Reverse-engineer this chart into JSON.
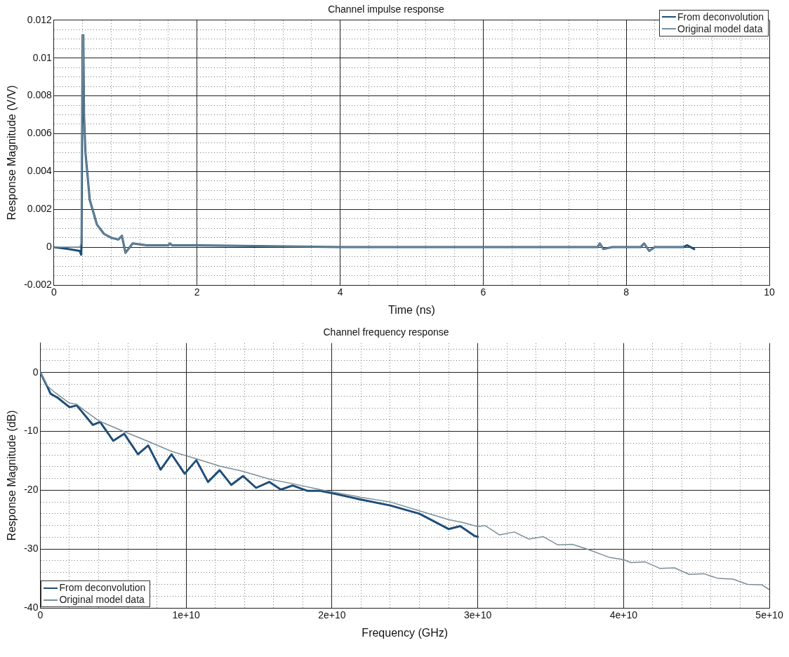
{
  "chart_data": [
    {
      "type": "line",
      "title": "Channel impulse response",
      "xlabel": "Time (ns)",
      "ylabel": "Response Magnitude (V/V)",
      "xlim": [
        0,
        10
      ],
      "ylim": [
        -0.002,
        0.012
      ],
      "xticks": [
        0,
        {
          "value": 0.4,
          "label": null
        },
        {
          "value": 0.8,
          "label": null
        },
        {
          "value": 1.2,
          "label": null
        },
        {
          "value": 1.6,
          "label": null
        },
        2,
        {
          "value": 2.4,
          "label": null
        },
        {
          "value": 2.8,
          "label": null
        },
        {
          "value": 3.2,
          "label": null
        },
        {
          "value": 3.6,
          "label": null
        },
        4,
        {
          "value": 4.4,
          "label": null
        },
        {
          "value": 4.8,
          "label": null
        },
        {
          "value": 5.2,
          "label": null
        },
        {
          "value": 5.6,
          "label": null
        },
        6,
        {
          "value": 6.4,
          "label": null
        },
        {
          "value": 6.8,
          "label": null
        },
        {
          "value": 7.2,
          "label": null
        },
        {
          "value": 7.6,
          "label": null
        },
        8,
        {
          "value": 8.4,
          "label": null
        },
        {
          "value": 8.8,
          "label": null
        },
        {
          "value": 9.2,
          "label": null
        },
        {
          "value": 9.6,
          "label": null
        },
        10
      ],
      "yticks": [
        -0.002,
        {
          "value": -0.0015,
          "label": null
        },
        {
          "value": -0.001,
          "label": null
        },
        {
          "value": -0.0005,
          "label": null
        },
        0,
        {
          "value": 0.0005,
          "label": null
        },
        {
          "value": 0.001,
          "label": null
        },
        {
          "value": 0.0015,
          "label": null
        },
        0.002,
        {
          "value": 0.0025,
          "label": null
        },
        {
          "value": 0.003,
          "label": null
        },
        {
          "value": 0.0035,
          "label": null
        },
        0.004,
        {
          "value": 0.0045,
          "label": null
        },
        {
          "value": 0.005,
          "label": null
        },
        {
          "value": 0.0055,
          "label": null
        },
        0.006,
        {
          "value": 0.0065,
          "label": null
        },
        {
          "value": 0.007,
          "label": null
        },
        {
          "value": 0.0075,
          "label": null
        },
        0.008,
        {
          "value": 0.0085,
          "label": null
        },
        {
          "value": 0.009,
          "label": null
        },
        {
          "value": 0.0095,
          "label": null
        },
        0.01,
        {
          "value": 0.0105,
          "label": null
        },
        {
          "value": 0.011,
          "label": null
        },
        {
          "value": 0.0115,
          "label": null
        },
        0.012
      ],
      "grid": true,
      "legend": "top right",
      "marker": "none",
      "line_style": "solid",
      "series": [
        {
          "name": "From deconvolution",
          "color": "#1f4e79",
          "x": [
            0,
            0.2,
            0.36,
            0.38,
            0.385,
            0.4,
            0.41,
            0.42,
            0.44,
            0.5,
            0.6,
            0.7,
            0.8,
            0.9,
            0.95,
            1.0,
            1.1,
            1.3,
            1.6,
            1.62,
            1.65,
            2,
            4,
            6,
            7.6,
            7.63,
            7.68,
            7.8,
            8.2,
            8.25,
            8.32,
            8.4,
            8.8,
            8.85,
            8.95
          ],
          "values": [
            0,
            -0.0001,
            -0.0002,
            -0.0004,
            0.0002,
            0.0112,
            0.0112,
            0.007,
            0.005,
            0.0025,
            0.0012,
            0.0007,
            0.0005,
            0.0004,
            0.0006,
            -0.0003,
            0.0002,
            0.0001,
            0.0001,
            0.0002,
            0.0001,
            0.0001,
            0,
            0,
            0,
            0.0002,
            -0.0001,
            0,
            0,
            0.0002,
            -0.0002,
            0,
            0,
            0.0001,
            -0.0001
          ]
        },
        {
          "name": "Original model data",
          "color": "#7a9099",
          "x": [
            0,
            0.2,
            0.36,
            0.38,
            0.4,
            0.41,
            0.42,
            0.44,
            0.5,
            0.6,
            0.7,
            0.8,
            0.9,
            0.95,
            1.0,
            1.1,
            1.3,
            1.6,
            1.62,
            1.65,
            2,
            4,
            6,
            7.6,
            7.63,
            7.68,
            7.8,
            8.2,
            8.25,
            8.32,
            8.4,
            8.8
          ],
          "values": [
            0,
            0,
            0,
            0.0002,
            0.0112,
            0.0112,
            0.007,
            0.005,
            0.0025,
            0.0012,
            0.0007,
            0.0005,
            0.0004,
            0.0006,
            -0.0003,
            0.0002,
            0.0001,
            0.0001,
            0.0002,
            0.0001,
            0.0001,
            0,
            0,
            0,
            0.0002,
            -0.0001,
            0,
            0,
            0.0002,
            -0.0002,
            0,
            0
          ]
        }
      ]
    },
    {
      "type": "line",
      "title": "Channel frequency response",
      "xlabel": "Frequency (GHz)",
      "ylabel": "Response Magnitude (dB)",
      "xlim": [
        0,
        50000000000
      ],
      "ylim": [
        -40,
        5
      ],
      "xticks": [
        0,
        {
          "value": 2000000000,
          "label": null
        },
        {
          "value": 4000000000,
          "label": null
        },
        {
          "value": 6000000000,
          "label": null
        },
        {
          "value": 8000000000,
          "label": null
        },
        {
          "value": 10000000000,
          "label": "1e+10"
        },
        {
          "value": 12000000000,
          "label": null
        },
        {
          "value": 14000000000,
          "label": null
        },
        {
          "value": 16000000000,
          "label": null
        },
        {
          "value": 18000000000,
          "label": null
        },
        {
          "value": 20000000000,
          "label": "2e+10"
        },
        {
          "value": 22000000000,
          "label": null
        },
        {
          "value": 24000000000,
          "label": null
        },
        {
          "value": 26000000000,
          "label": null
        },
        {
          "value": 28000000000,
          "label": null
        },
        {
          "value": 30000000000,
          "label": "3e+10"
        },
        {
          "value": 32000000000,
          "label": null
        },
        {
          "value": 34000000000,
          "label": null
        },
        {
          "value": 36000000000,
          "label": null
        },
        {
          "value": 38000000000,
          "label": null
        },
        {
          "value": 40000000000,
          "label": "4e+10"
        },
        {
          "value": 42000000000,
          "label": null
        },
        {
          "value": 44000000000,
          "label": null
        },
        {
          "value": 46000000000,
          "label": null
        },
        {
          "value": 48000000000,
          "label": null
        },
        {
          "value": 50000000000,
          "label": "5e+10"
        }
      ],
      "yticks": [
        -40,
        {
          "value": -38,
          "label": null
        },
        {
          "value": -36,
          "label": null
        },
        {
          "value": -34,
          "label": null
        },
        {
          "value": -32,
          "label": null
        },
        -30,
        {
          "value": -28,
          "label": null
        },
        {
          "value": -26,
          "label": null
        },
        {
          "value": -24,
          "label": null
        },
        {
          "value": -22,
          "label": null
        },
        -20,
        {
          "value": -18,
          "label": null
        },
        {
          "value": -16,
          "label": null
        },
        {
          "value": -14,
          "label": null
        },
        {
          "value": -12,
          "label": null
        },
        -10,
        {
          "value": -8,
          "label": null
        },
        {
          "value": -6,
          "label": null
        },
        {
          "value": -4,
          "label": null
        },
        {
          "value": -2,
          "label": null
        },
        0,
        {
          "value": 2,
          "label": null
        },
        {
          "value": 4,
          "label": null
        }
      ],
      "grid": true,
      "legend": "bottom left",
      "marker": "none",
      "line_style": "solid",
      "series": [
        {
          "name": "From deconvolution",
          "color": "#1f4e79",
          "x": [
            0,
            500000000,
            700000000,
            1200000000,
            2000000000,
            2500000000,
            3600000000,
            4100000000,
            5000000000,
            5750000000,
            6700000000,
            7400000000,
            8250000000,
            9000000000,
            9900000000,
            10700000000,
            11500000000,
            12300000000,
            13100000000,
            13900000000,
            14800000000,
            15700000000,
            16500000000,
            17300000000,
            18300000000,
            19200000000,
            20000000000,
            22000000000,
            24000000000,
            26000000000,
            28000000000,
            28800000000,
            29800000000,
            30000000000
          ],
          "values": [
            0,
            -2.5,
            -3.6,
            -4.3,
            -5.9,
            -5.6,
            -8.9,
            -8.4,
            -11.6,
            -10.4,
            -13.9,
            -12.4,
            -16.5,
            -13.9,
            -17.2,
            -14.9,
            -18.6,
            -16.6,
            -19.1,
            -17.6,
            -19.6,
            -18.6,
            -19.9,
            -19.2,
            -20.1,
            -20.1,
            -20.5,
            -21.6,
            -22.6,
            -24,
            -26.6,
            -26.1,
            -27.8,
            -27.9
          ]
        },
        {
          "name": "Original model data",
          "color": "#7a9099",
          "x": [
            0,
            500000000,
            1000000000,
            2000000000,
            2500000000,
            3000000000,
            4000000000,
            5700000000,
            7300000000,
            9000000000,
            10600000000,
            12300000000,
            13900000000,
            15700000000,
            17300000000,
            19200000000,
            20700000000,
            22000000000,
            24000000000,
            26000000000,
            28000000000,
            29000000000,
            30000000000,
            30500000000,
            31500000000,
            32500000000,
            33500000000,
            34500000000,
            35500000000,
            36500000000,
            37500000000,
            39000000000,
            40000000000,
            40500000000,
            41500000000,
            42500000000,
            43500000000,
            44500000000,
            45500000000,
            46500000000,
            47500000000,
            48500000000,
            49500000000,
            50000000000
          ],
          "values": [
            0,
            -2.3,
            -3.4,
            -5.2,
            -5.4,
            -6.4,
            -8.2,
            -10,
            -11.6,
            -13.4,
            -14.6,
            -15.9,
            -16.8,
            -18.1,
            -18.9,
            -19.9,
            -20.6,
            -21.2,
            -22,
            -23.5,
            -25,
            -25.5,
            -26.2,
            -26,
            -27.6,
            -27.1,
            -28.3,
            -27.9,
            -29.3,
            -29.2,
            -30,
            -31.4,
            -31.8,
            -32.3,
            -32.2,
            -33.3,
            -33.2,
            -34.3,
            -34.2,
            -35,
            -35.1,
            -36,
            -36.1,
            -36.9
          ]
        }
      ]
    }
  ]
}
